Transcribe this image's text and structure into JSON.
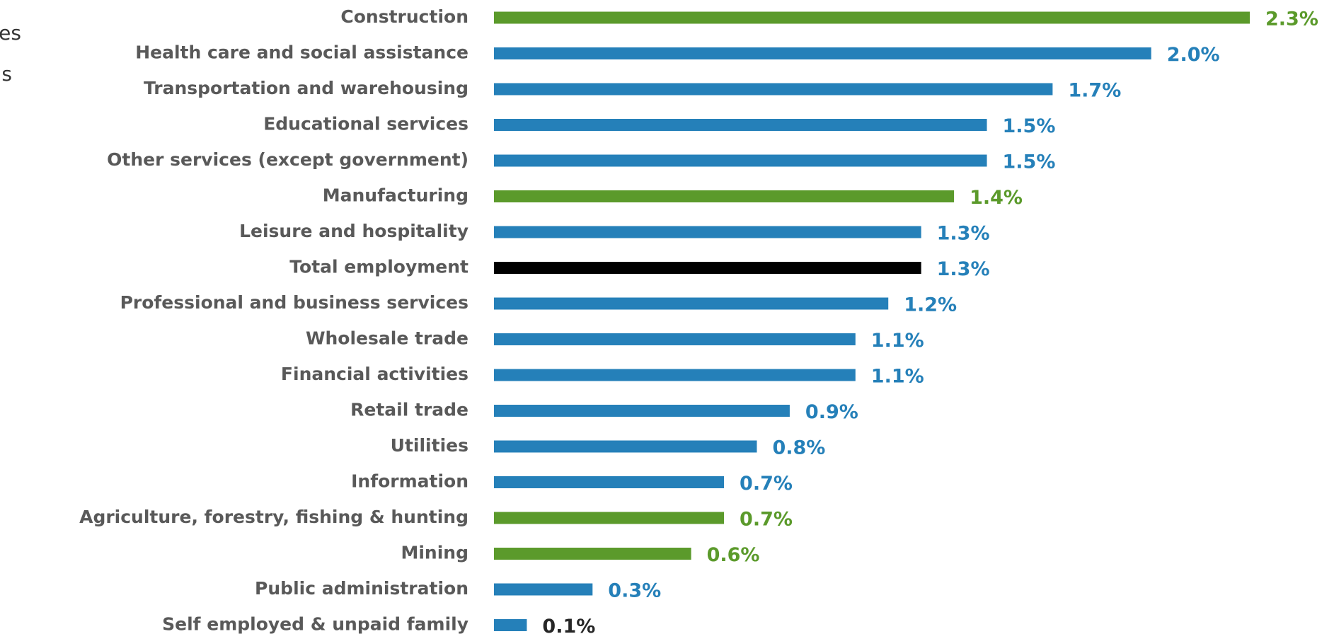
{
  "chart_data": {
    "type": "hbar",
    "annotations": [
      "es",
      "s"
    ],
    "categories": [
      "Construction",
      "Health care and social assistance",
      "Transportation and warehousing",
      "Educational services",
      "Other services (except government)",
      "Manufacturing",
      "Leisure and hospitality",
      "Total employment",
      "Professional and business services",
      "Wholesale trade",
      "Financial activities",
      "Retail trade",
      "Utilities",
      "Information",
      "Agriculture, forestry, fishing & hunting",
      "Mining",
      "Public administration",
      "Self employed & unpaid family"
    ],
    "values": [
      2.3,
      2.0,
      1.7,
      1.5,
      1.5,
      1.4,
      1.3,
      1.3,
      1.2,
      1.1,
      1.1,
      0.9,
      0.8,
      0.7,
      0.7,
      0.6,
      0.3,
      0.1
    ],
    "value_labels": [
      "2.3%",
      "2.0%",
      "1.7%",
      "1.5%",
      "1.5%",
      "1.4%",
      "1.3%",
      "1.3%",
      "1.2%",
      "1.1%",
      "1.1%",
      "0.9%",
      "0.8%",
      "0.7%",
      "0.7%",
      "0.6%",
      "0.3%",
      "0.1%"
    ],
    "colors": [
      "#5b9a2b",
      "#2580b9",
      "#2580b9",
      "#2580b9",
      "#2580b9",
      "#5b9a2b",
      "#2580b9",
      "#000000",
      "#2580b9",
      "#2580b9",
      "#2580b9",
      "#2580b9",
      "#2580b9",
      "#2580b9",
      "#5b9a2b",
      "#5b9a2b",
      "#2580b9",
      "#2580b9"
    ],
    "label_colors": [
      "#5b9a2b",
      "#2580b9",
      "#2580b9",
      "#2580b9",
      "#2580b9",
      "#5b9a2b",
      "#2580b9",
      "#2580b9",
      "#2580b9",
      "#2580b9",
      "#2580b9",
      "#2580b9",
      "#2580b9",
      "#2580b9",
      "#5b9a2b",
      "#5b9a2b",
      "#2580b9",
      "#262626"
    ]
  }
}
